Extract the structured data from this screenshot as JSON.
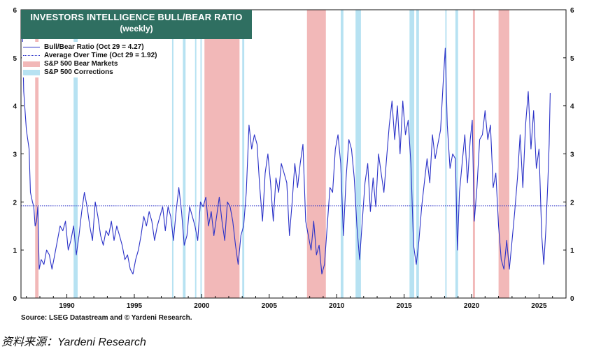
{
  "chart_data": {
    "type": "line",
    "title": "INVESTORS INTELLIGENCE BULL/BEAR RATIO",
    "subtitle": "(weekly)",
    "x_ticks": [
      1990,
      1995,
      2000,
      2005,
      2010,
      2015,
      2020,
      2025
    ],
    "xlim": [
      1986.6,
      2027.0
    ],
    "y_ticks": [
      0,
      1,
      2,
      3,
      4,
      5,
      6
    ],
    "ylim": [
      0,
      6
    ],
    "average": 1.92,
    "legend": {
      "series": "Bull/Bear Ratio (Oct 29 = 4.27)",
      "average": "Average Over Time (Oct 29 = 1.92)",
      "bear": "S&P 500 Bear Markets",
      "corrections": "S&P 500 Corrections"
    },
    "bear_markets": [
      [
        1987.65,
        1987.9
      ],
      [
        2000.2,
        2002.8
      ],
      [
        2007.8,
        2009.2
      ],
      [
        2020.1,
        2020.25
      ],
      [
        2022.0,
        2022.8
      ]
    ],
    "corrections": [
      [
        1990.5,
        1990.8
      ],
      [
        1997.8,
        1997.9
      ],
      [
        1998.6,
        1998.8
      ],
      [
        1999.5,
        1999.6
      ],
      [
        1999.9,
        2000.0
      ],
      [
        2003.0,
        2003.15
      ],
      [
        2010.3,
        2010.5
      ],
      [
        2011.4,
        2011.8
      ],
      [
        2015.4,
        2015.75
      ],
      [
        2015.9,
        2016.1
      ],
      [
        2018.05,
        2018.15
      ],
      [
        2018.8,
        2019.0
      ]
    ],
    "series": [
      {
        "name": "Bull/Bear Ratio",
        "points": [
          [
            1986.7,
            5.6
          ],
          [
            1986.8,
            4.3
          ],
          [
            1987.0,
            3.5
          ],
          [
            1987.2,
            3.1
          ],
          [
            1987.3,
            2.2
          ],
          [
            1987.45,
            2.0
          ],
          [
            1987.55,
            1.9
          ],
          [
            1987.65,
            1.5
          ],
          [
            1987.75,
            1.6
          ],
          [
            1987.85,
            1.9
          ],
          [
            1987.95,
            0.6
          ],
          [
            1988.1,
            0.8
          ],
          [
            1988.3,
            0.7
          ],
          [
            1988.5,
            1.0
          ],
          [
            1988.7,
            0.9
          ],
          [
            1988.9,
            0.6
          ],
          [
            1989.1,
            0.9
          ],
          [
            1989.3,
            1.2
          ],
          [
            1989.5,
            1.5
          ],
          [
            1989.7,
            1.4
          ],
          [
            1989.9,
            1.6
          ],
          [
            1990.1,
            1.0
          ],
          [
            1990.3,
            1.2
          ],
          [
            1990.5,
            1.5
          ],
          [
            1990.7,
            0.9
          ],
          [
            1990.9,
            1.3
          ],
          [
            1991.1,
            1.8
          ],
          [
            1991.3,
            2.2
          ],
          [
            1991.5,
            1.9
          ],
          [
            1991.7,
            1.5
          ],
          [
            1991.9,
            1.2
          ],
          [
            1992.1,
            2.0
          ],
          [
            1992.3,
            1.7
          ],
          [
            1992.5,
            1.3
          ],
          [
            1992.7,
            1.1
          ],
          [
            1992.9,
            1.4
          ],
          [
            1993.1,
            1.3
          ],
          [
            1993.3,
            1.6
          ],
          [
            1993.5,
            1.2
          ],
          [
            1993.7,
            1.5
          ],
          [
            1993.9,
            1.3
          ],
          [
            1994.1,
            1.1
          ],
          [
            1994.3,
            0.8
          ],
          [
            1994.5,
            0.9
          ],
          [
            1994.7,
            0.6
          ],
          [
            1994.9,
            0.5
          ],
          [
            1995.1,
            0.8
          ],
          [
            1995.3,
            1.0
          ],
          [
            1995.5,
            1.3
          ],
          [
            1995.7,
            1.7
          ],
          [
            1995.9,
            1.5
          ],
          [
            1996.1,
            1.8
          ],
          [
            1996.3,
            1.6
          ],
          [
            1996.5,
            1.2
          ],
          [
            1996.7,
            1.5
          ],
          [
            1996.9,
            1.7
          ],
          [
            1997.1,
            1.9
          ],
          [
            1997.3,
            1.4
          ],
          [
            1997.5,
            1.9
          ],
          [
            1997.7,
            1.7
          ],
          [
            1997.9,
            1.2
          ],
          [
            1998.1,
            1.8
          ],
          [
            1998.3,
            2.3
          ],
          [
            1998.5,
            1.8
          ],
          [
            1998.7,
            1.1
          ],
          [
            1998.9,
            1.3
          ],
          [
            1999.1,
            1.9
          ],
          [
            1999.3,
            1.7
          ],
          [
            1999.5,
            1.5
          ],
          [
            1999.7,
            1.2
          ],
          [
            1999.9,
            2.0
          ],
          [
            2000.1,
            1.9
          ],
          [
            2000.3,
            2.1
          ],
          [
            2000.5,
            1.5
          ],
          [
            2000.7,
            1.8
          ],
          [
            2000.9,
            1.3
          ],
          [
            2001.1,
            1.7
          ],
          [
            2001.3,
            2.1
          ],
          [
            2001.5,
            1.6
          ],
          [
            2001.7,
            1.2
          ],
          [
            2001.9,
            2.0
          ],
          [
            2002.1,
            1.9
          ],
          [
            2002.3,
            1.6
          ],
          [
            2002.5,
            1.1
          ],
          [
            2002.7,
            0.7
          ],
          [
            2002.9,
            1.3
          ],
          [
            2003.1,
            1.5
          ],
          [
            2003.3,
            2.2
          ],
          [
            2003.5,
            3.6
          ],
          [
            2003.7,
            3.1
          ],
          [
            2003.9,
            3.4
          ],
          [
            2004.1,
            3.2
          ],
          [
            2004.3,
            2.3
          ],
          [
            2004.5,
            1.6
          ],
          [
            2004.7,
            2.6
          ],
          [
            2004.9,
            3.0
          ],
          [
            2005.1,
            2.4
          ],
          [
            2005.3,
            1.6
          ],
          [
            2005.5,
            2.5
          ],
          [
            2005.7,
            2.2
          ],
          [
            2005.9,
            2.8
          ],
          [
            2006.1,
            2.6
          ],
          [
            2006.3,
            2.4
          ],
          [
            2006.5,
            1.3
          ],
          [
            2006.7,
            2.0
          ],
          [
            2006.9,
            2.8
          ],
          [
            2007.1,
            2.3
          ],
          [
            2007.3,
            2.8
          ],
          [
            2007.5,
            3.2
          ],
          [
            2007.7,
            1.6
          ],
          [
            2007.9,
            1.3
          ],
          [
            2008.1,
            1.0
          ],
          [
            2008.3,
            1.6
          ],
          [
            2008.5,
            0.9
          ],
          [
            2008.7,
            1.1
          ],
          [
            2008.9,
            0.5
          ],
          [
            2009.1,
            0.7
          ],
          [
            2009.3,
            1.5
          ],
          [
            2009.5,
            2.3
          ],
          [
            2009.7,
            2.2
          ],
          [
            2009.9,
            3.1
          ],
          [
            2010.1,
            3.4
          ],
          [
            2010.3,
            2.8
          ],
          [
            2010.5,
            1.3
          ],
          [
            2010.7,
            2.5
          ],
          [
            2010.9,
            3.3
          ],
          [
            2011.1,
            3.1
          ],
          [
            2011.3,
            2.5
          ],
          [
            2011.5,
            1.5
          ],
          [
            2011.7,
            0.8
          ],
          [
            2011.9,
            1.6
          ],
          [
            2012.1,
            2.4
          ],
          [
            2012.3,
            2.8
          ],
          [
            2012.5,
            1.8
          ],
          [
            2012.7,
            2.5
          ],
          [
            2012.9,
            1.9
          ],
          [
            2013.1,
            3.0
          ],
          [
            2013.3,
            2.6
          ],
          [
            2013.5,
            2.2
          ],
          [
            2013.7,
            2.9
          ],
          [
            2013.9,
            3.6
          ],
          [
            2014.1,
            4.1
          ],
          [
            2014.3,
            3.3
          ],
          [
            2014.5,
            4.0
          ],
          [
            2014.7,
            3.0
          ],
          [
            2014.9,
            4.1
          ],
          [
            2015.1,
            3.4
          ],
          [
            2015.3,
            3.7
          ],
          [
            2015.5,
            2.8
          ],
          [
            2015.7,
            1.1
          ],
          [
            2015.9,
            0.7
          ],
          [
            2016.1,
            1.2
          ],
          [
            2016.3,
            1.9
          ],
          [
            2016.5,
            2.4
          ],
          [
            2016.7,
            2.9
          ],
          [
            2016.9,
            2.4
          ],
          [
            2017.1,
            3.4
          ],
          [
            2017.3,
            2.9
          ],
          [
            2017.5,
            3.2
          ],
          [
            2017.7,
            3.5
          ],
          [
            2017.9,
            4.5
          ],
          [
            2018.05,
            5.2
          ],
          [
            2018.2,
            3.6
          ],
          [
            2018.4,
            2.7
          ],
          [
            2018.6,
            3.0
          ],
          [
            2018.8,
            2.9
          ],
          [
            2018.95,
            1.0
          ],
          [
            2019.1,
            2.2
          ],
          [
            2019.3,
            2.8
          ],
          [
            2019.5,
            3.4
          ],
          [
            2019.7,
            2.4
          ],
          [
            2019.9,
            3.3
          ],
          [
            2020.05,
            3.7
          ],
          [
            2020.2,
            1.6
          ],
          [
            2020.4,
            2.3
          ],
          [
            2020.6,
            3.3
          ],
          [
            2020.8,
            3.4
          ],
          [
            2021.0,
            3.9
          ],
          [
            2021.2,
            3.3
          ],
          [
            2021.4,
            3.6
          ],
          [
            2021.6,
            2.3
          ],
          [
            2021.8,
            2.6
          ],
          [
            2022.0,
            1.5
          ],
          [
            2022.2,
            0.8
          ],
          [
            2022.4,
            0.6
          ],
          [
            2022.6,
            1.2
          ],
          [
            2022.8,
            0.6
          ],
          [
            2023.0,
            1.2
          ],
          [
            2023.2,
            1.8
          ],
          [
            2023.4,
            2.5
          ],
          [
            2023.6,
            3.4
          ],
          [
            2023.8,
            2.3
          ],
          [
            2024.0,
            3.6
          ],
          [
            2024.2,
            4.3
          ],
          [
            2024.4,
            3.1
          ],
          [
            2024.6,
            3.9
          ],
          [
            2024.8,
            2.7
          ],
          [
            2025.0,
            3.1
          ],
          [
            2025.2,
            1.3
          ],
          [
            2025.35,
            0.7
          ],
          [
            2025.5,
            1.4
          ],
          [
            2025.65,
            2.4
          ],
          [
            2025.75,
            3.2
          ],
          [
            2025.83,
            4.27
          ]
        ]
      }
    ]
  },
  "source": "Source: LSEG Datastream and © Yardeni Research.",
  "caption": "资料来源：Yardeni Research",
  "colors": {
    "line": "#2b32c8",
    "bear": "#f2b8b8",
    "corrections": "#b7e2f2",
    "title_bg": "#2f6f61"
  }
}
